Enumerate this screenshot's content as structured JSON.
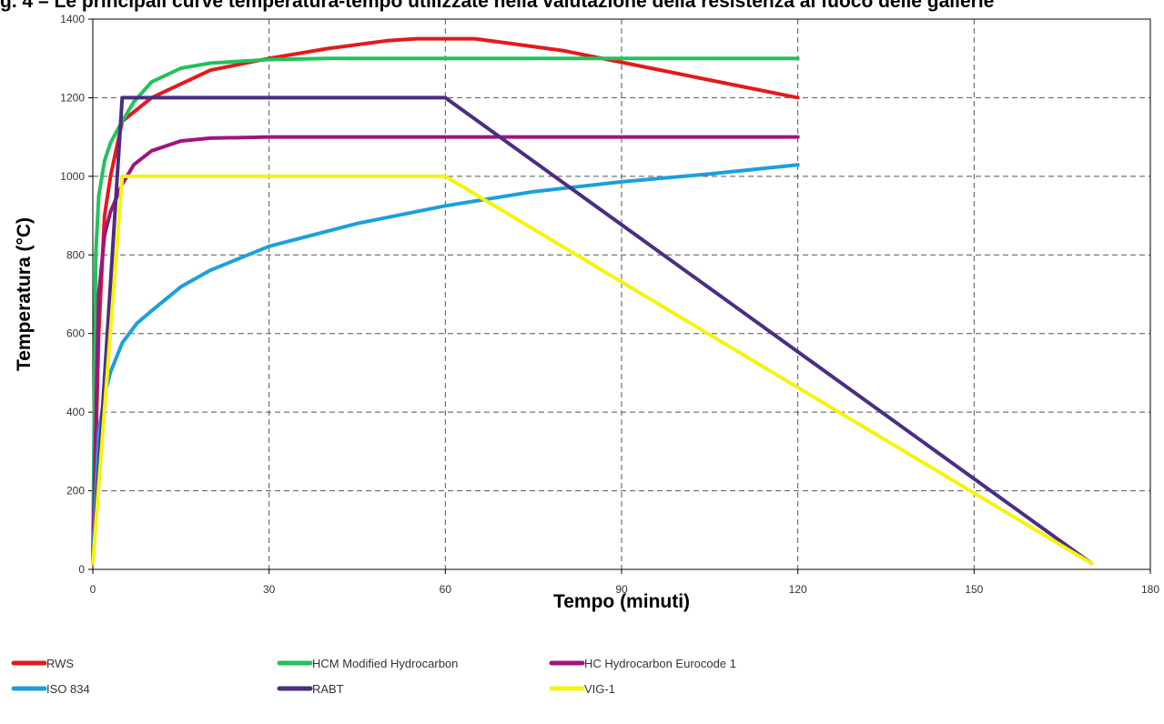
{
  "chart_data": {
    "type": "line",
    "title": "g. 4 – Le principali curve temperatura-tempo utilizzate nella valutazione della resistenza al fuoco delle gallerie",
    "xlabel": "Tempo (minuti)",
    "ylabel": "Temperatura (°C)",
    "xlim": [
      0,
      180
    ],
    "ylim": [
      0,
      1400
    ],
    "xticks": [
      0,
      30,
      60,
      90,
      120,
      150,
      180
    ],
    "yticks": [
      0,
      200,
      400,
      600,
      800,
      1000,
      1200,
      1400
    ],
    "grid": true,
    "legend_position": "bottom",
    "series": [
      {
        "name": "RWS",
        "color": "#e31a1c",
        "x": [
          0,
          1,
          2,
          3,
          5,
          10,
          20,
          30,
          40,
          50,
          55,
          60,
          65,
          70,
          80,
          90,
          100,
          110,
          120
        ],
        "y": [
          20,
          600,
          900,
          1000,
          1140,
          1200,
          1270,
          1300,
          1325,
          1345,
          1350,
          1350,
          1350,
          1340,
          1320,
          1290,
          1260,
          1230,
          1200
        ]
      },
      {
        "name": "HCM Modified Hydrocarbon",
        "color": "#22c25a",
        "x": [
          0,
          0.5,
          1,
          2,
          3,
          5,
          7,
          10,
          15,
          20,
          30,
          40,
          60,
          90,
          120
        ],
        "y": [
          20,
          800,
          950,
          1040,
          1085,
          1140,
          1190,
          1240,
          1275,
          1288,
          1297,
          1300,
          1300,
          1300,
          1300
        ]
      },
      {
        "name": "HC Hydrocarbon Eurocode 1",
        "color": "#a0137f",
        "x": [
          0,
          1,
          2,
          3,
          5,
          7,
          10,
          15,
          20,
          30,
          60,
          90,
          120
        ],
        "y": [
          20,
          700,
          850,
          910,
          980,
          1030,
          1065,
          1090,
          1097,
          1100,
          1100,
          1100,
          1100
        ]
      },
      {
        "name": "ISO 834",
        "color": "#1c9fdd",
        "x": [
          0,
          1,
          2,
          3,
          5,
          7.5,
          10,
          15,
          20,
          30,
          45,
          60,
          75,
          90,
          105,
          120
        ],
        "y": [
          20,
          349,
          445,
          502,
          576,
          626,
          658,
          719,
          761,
          822,
          880,
          925,
          961,
          986,
          1006,
          1029
        ]
      },
      {
        "name": "RABT",
        "color": "#4b2e83",
        "x": [
          0,
          5,
          60,
          170
        ],
        "y": [
          15,
          1200,
          1200,
          15
        ]
      },
      {
        "name": "VIG-1",
        "color": "#f7f20f",
        "x": [
          0,
          5,
          60,
          170
        ],
        "y": [
          15,
          1000,
          1000,
          15
        ]
      }
    ]
  }
}
